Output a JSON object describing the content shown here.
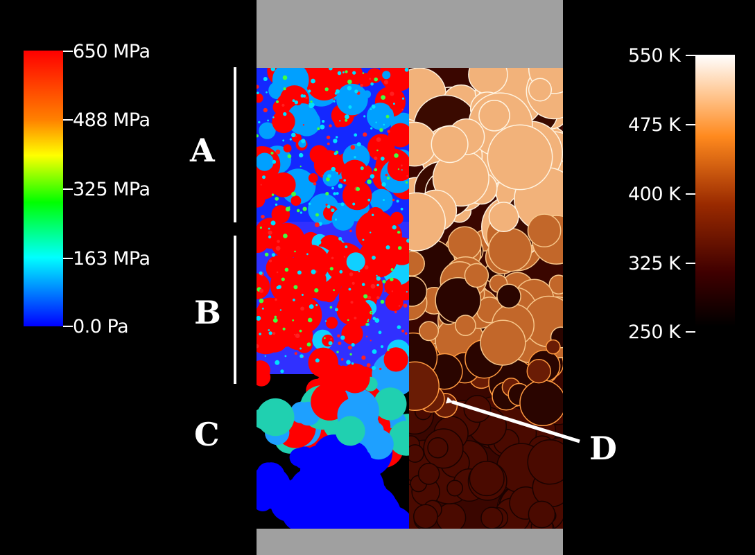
{
  "stress_colorbar": {
    "ticks": [
      "650 MPa",
      "488 MPa",
      "325 MPa",
      "163 MPa",
      "0.0 Pa"
    ],
    "colors": [
      "#ff0000",
      "#ff8000",
      "#ffff00",
      "#00ff00",
      "#00ffff",
      "#0000ff"
    ]
  },
  "temperature_colorbar": {
    "ticks": [
      "550 K",
      "475 K",
      "400 K",
      "325 K",
      "250 K"
    ],
    "colors": [
      "#ffffff",
      "#ff8a1e",
      "#9a2a00",
      "#400000",
      "#000000"
    ]
  },
  "zones": {
    "a": "A",
    "b": "B",
    "c": "C",
    "d": "D"
  },
  "colors": {
    "background": "#000000",
    "piston": "#a0a0a0",
    "stress_high": "#ff0000",
    "stress_low": "#0000ff",
    "stress_mid": "#00c8ff",
    "temp_hot": "#f2b27a",
    "temp_mid": "#b3561b",
    "temp_cold": "#3a0600",
    "annotation": "#ffffff"
  }
}
